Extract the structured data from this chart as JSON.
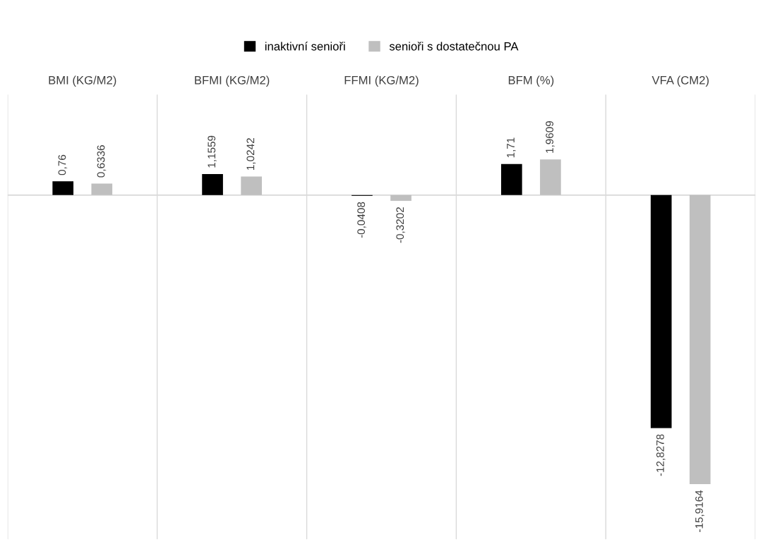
{
  "chart_data": {
    "type": "bar",
    "categories": [
      "BMI (KG/M2)",
      "BFMI (KG/M2)",
      "FFMI (KG/M2)",
      "BFM (%)",
      "VFA (CM2)"
    ],
    "series": [
      {
        "name": "inaktivní senioři",
        "color": "#000000",
        "values": [
          0.76,
          1.1559,
          -0.0408,
          1.71,
          -12.8278
        ],
        "value_labels": [
          "0,76",
          "1,1559",
          "-0,0408",
          "1,71",
          "-12,8278"
        ]
      },
      {
        "name": "senioři s dostatečnou PA",
        "color": "#bfbfbf",
        "values": [
          0.6336,
          1.0242,
          -0.3202,
          1.9609,
          -15.9164
        ],
        "value_labels": [
          "0,6336",
          "1,0242",
          "-0,3202",
          "1,9609",
          "-15,9164"
        ]
      }
    ],
    "grid": "x",
    "legend": "top"
  }
}
